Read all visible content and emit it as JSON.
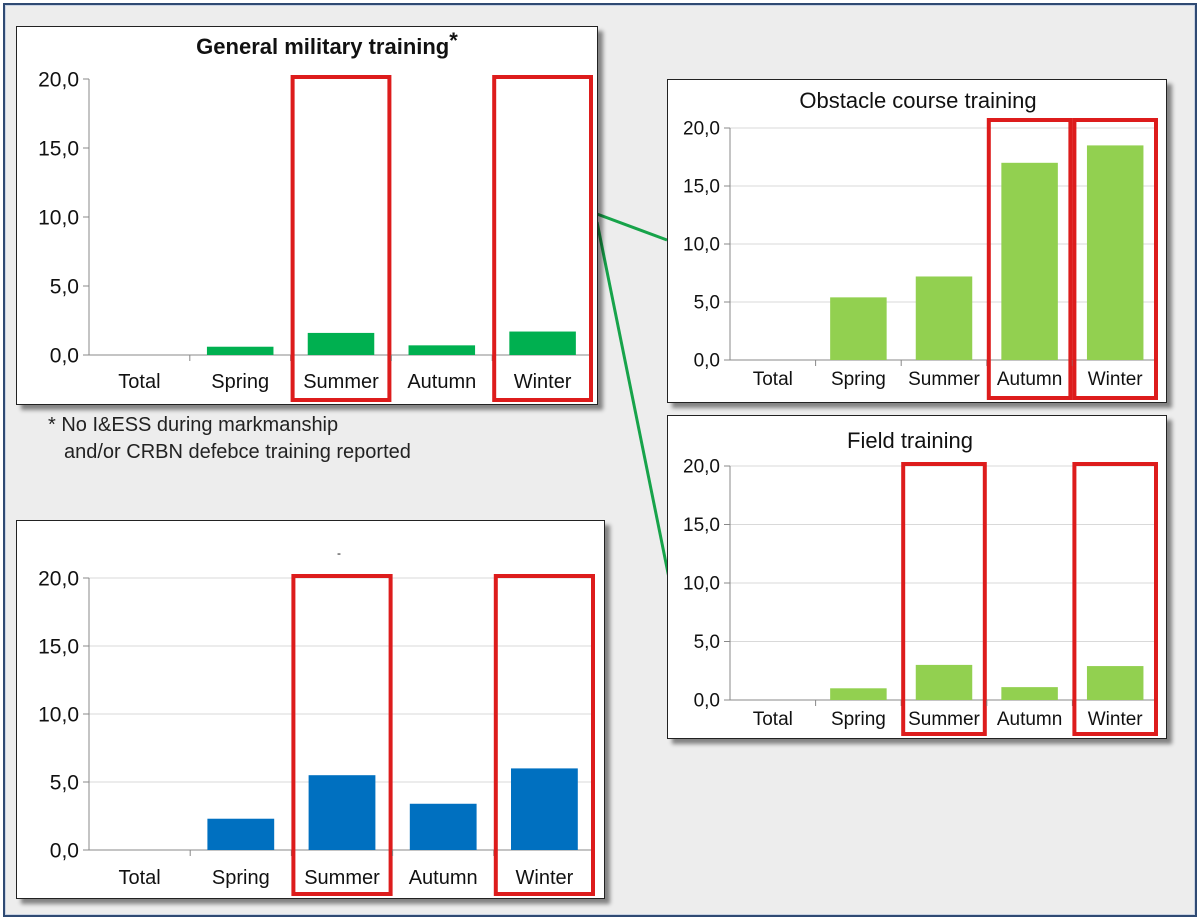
{
  "colors": {
    "frame": "#2f4a73",
    "highlight": "#dd1c1c",
    "connector": "#17a34a",
    "gridline": "#d9d9d9",
    "axis": "#888888"
  },
  "footnote": {
    "line1": "* No I&ESS during markmanship",
    "line2": "and/or CRBN defebce training reported"
  },
  "chart_data": [
    {
      "id": "general",
      "type": "bar",
      "title": "General military training",
      "title_mark": "*",
      "categories": [
        "Total",
        "Spring",
        "Summer",
        "Autumn",
        "Winter"
      ],
      "values": [
        0.0,
        0.6,
        1.6,
        0.7,
        1.7
      ],
      "color": "#00b050",
      "ylim": [
        0,
        20
      ],
      "yticks": [
        "0,0",
        "5,0",
        "10,0",
        "15,0",
        "20,0"
      ],
      "highlighted": [
        "Summer",
        "Winter"
      ],
      "grid": false,
      "xlabel": "",
      "ylabel": ""
    },
    {
      "id": "obstacle",
      "type": "bar",
      "title": "Obstacle course training",
      "title_mark": "",
      "categories": [
        "Total",
        "Spring",
        "Summer",
        "Autumn",
        "Winter"
      ],
      "values": [
        0.0,
        5.4,
        7.2,
        17.0,
        18.5
      ],
      "color": "#92d050",
      "ylim": [
        0,
        20
      ],
      "yticks": [
        "0,0",
        "5,0",
        "10,0",
        "15,0",
        "20,0"
      ],
      "highlighted": [
        "Autumn",
        "Winter"
      ],
      "grid": true,
      "xlabel": "",
      "ylabel": ""
    },
    {
      "id": "field",
      "type": "bar",
      "title": "Field training",
      "title_mark": "",
      "categories": [
        "Total",
        "Spring",
        "Summer",
        "Autumn",
        "Winter"
      ],
      "values": [
        0.0,
        1.0,
        3.0,
        1.1,
        2.9
      ],
      "color": "#92d050",
      "ylim": [
        0,
        20
      ],
      "yticks": [
        "0,0",
        "5,0",
        "10,0",
        "15,0",
        "20,0"
      ],
      "highlighted": [
        "Summer",
        "Winter"
      ],
      "grid": true,
      "xlabel": "",
      "ylabel": ""
    },
    {
      "id": "bottom",
      "type": "bar",
      "title": "-",
      "title_mark": "",
      "categories": [
        "Total",
        "Spring",
        "Summer",
        "Autumn",
        "Winter"
      ],
      "values": [
        0.0,
        2.3,
        5.5,
        3.4,
        6.0
      ],
      "color": "#0070c0",
      "ylim": [
        0,
        20
      ],
      "yticks": [
        "0,0",
        "5,0",
        "10,0",
        "15,0",
        "20,0"
      ],
      "highlighted": [
        "Summer",
        "Winter"
      ],
      "grid": true,
      "xlabel": "",
      "ylabel": ""
    }
  ]
}
